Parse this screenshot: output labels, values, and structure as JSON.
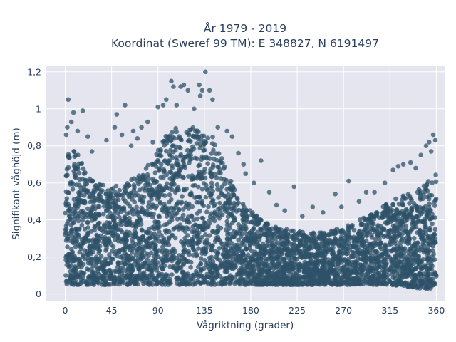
{
  "chart_data": {
    "type": "scatter",
    "title": "År 1979 - 2019",
    "subtitle": "Koordinat (Sweref 99 TM): E 348827, N 6191497",
    "xlabel": "Vågriktning (grader)",
    "ylabel": "Signifikant våghöjd (m)",
    "xlim": [
      -19,
      368
    ],
    "ylim": [
      -0.04,
      1.23
    ],
    "x_ticks": [
      0,
      45,
      90,
      135,
      180,
      225,
      270,
      315,
      360
    ],
    "x_tick_labels": [
      "0",
      "45",
      "90",
      "135",
      "180",
      "225",
      "270",
      "315",
      "360"
    ],
    "y_ticks": [
      0,
      0.2,
      0.4,
      0.6,
      0.8,
      1.0,
      1.2
    ],
    "y_tick_labels": [
      "0",
      "0,2",
      "0,4",
      "0,6",
      "0,8",
      "1",
      "1,2"
    ],
    "grid": true,
    "marker_color": "#2e5168",
    "plot_background": "#e5e5ef",
    "dense_envelope": {
      "x": [
        0,
        10,
        20,
        30,
        45,
        60,
        75,
        90,
        100,
        110,
        120,
        130,
        140,
        150,
        160,
        170,
        180,
        190,
        200,
        215,
        225,
        240,
        255,
        270,
        285,
        300,
        315,
        330,
        345,
        355,
        360
      ],
      "y_low": [
        0.05,
        0.05,
        0.05,
        0.05,
        0.05,
        0.05,
        0.05,
        0.05,
        0.05,
        0.05,
        0.05,
        0.05,
        0.05,
        0.05,
        0.05,
        0.05,
        0.05,
        0.05,
        0.05,
        0.05,
        0.05,
        0.05,
        0.05,
        0.05,
        0.05,
        0.05,
        0.05,
        0.04,
        0.03,
        0.03,
        0.05
      ],
      "y_high": [
        0.82,
        0.78,
        0.66,
        0.62,
        0.58,
        0.6,
        0.66,
        0.78,
        0.88,
        0.9,
        0.9,
        0.9,
        0.88,
        0.78,
        0.62,
        0.52,
        0.45,
        0.4,
        0.37,
        0.35,
        0.34,
        0.33,
        0.34,
        0.36,
        0.4,
        0.44,
        0.5,
        0.54,
        0.58,
        0.62,
        0.66
      ]
    },
    "outlier_points": [
      {
        "x": 3,
        "y": 1.05
      },
      {
        "x": 8,
        "y": 0.98
      },
      {
        "x": 17,
        "y": 0.99
      },
      {
        "x": 2,
        "y": 0.9
      },
      {
        "x": 12,
        "y": 0.88
      },
      {
        "x": 22,
        "y": 0.85
      },
      {
        "x": 58,
        "y": 1.02
      },
      {
        "x": 50,
        "y": 0.97
      },
      {
        "x": 48,
        "y": 0.9
      },
      {
        "x": 66,
        "y": 0.88
      },
      {
        "x": 74,
        "y": 0.9
      },
      {
        "x": 80,
        "y": 0.93
      },
      {
        "x": 70,
        "y": 0.84
      },
      {
        "x": 85,
        "y": 0.82
      },
      {
        "x": 90,
        "y": 1.01
      },
      {
        "x": 95,
        "y": 1.02
      },
      {
        "x": 98,
        "y": 1.05
      },
      {
        "x": 103,
        "y": 1.15
      },
      {
        "x": 105,
        "y": 1.12
      },
      {
        "x": 112,
        "y": 1.12
      },
      {
        "x": 115,
        "y": 1.13
      },
      {
        "x": 119,
        "y": 1.1
      },
      {
        "x": 130,
        "y": 1.13
      },
      {
        "x": 133,
        "y": 1.1
      },
      {
        "x": 136,
        "y": 1.2
      },
      {
        "x": 140,
        "y": 1.1
      },
      {
        "x": 131,
        "y": 1.07
      },
      {
        "x": 143,
        "y": 1.05
      },
      {
        "x": 148,
        "y": 0.9
      },
      {
        "x": 157,
        "y": 0.88
      },
      {
        "x": 162,
        "y": 0.85
      },
      {
        "x": 168,
        "y": 0.76
      },
      {
        "x": 173,
        "y": 0.7
      },
      {
        "x": 175,
        "y": 0.65
      },
      {
        "x": 183,
        "y": 0.6
      },
      {
        "x": 190,
        "y": 0.72
      },
      {
        "x": 198,
        "y": 0.55
      },
      {
        "x": 205,
        "y": 0.48
      },
      {
        "x": 213,
        "y": 0.45
      },
      {
        "x": 222,
        "y": 0.58
      },
      {
        "x": 230,
        "y": 0.42
      },
      {
        "x": 240,
        "y": 0.47
      },
      {
        "x": 250,
        "y": 0.44
      },
      {
        "x": 262,
        "y": 0.54
      },
      {
        "x": 268,
        "y": 0.47
      },
      {
        "x": 275,
        "y": 0.61
      },
      {
        "x": 285,
        "y": 0.5
      },
      {
        "x": 292,
        "y": 0.55
      },
      {
        "x": 300,
        "y": 0.55
      },
      {
        "x": 310,
        "y": 0.6
      },
      {
        "x": 318,
        "y": 0.67
      },
      {
        "x": 323,
        "y": 0.69
      },
      {
        "x": 328,
        "y": 0.7
      },
      {
        "x": 335,
        "y": 0.71
      },
      {
        "x": 340,
        "y": 0.68
      },
      {
        "x": 345,
        "y": 0.75
      },
      {
        "x": 350,
        "y": 0.8
      },
      {
        "x": 353,
        "y": 0.82
      },
      {
        "x": 357,
        "y": 0.86
      },
      {
        "x": 359,
        "y": 0.83
      },
      {
        "x": 355,
        "y": 0.77
      },
      {
        "x": 1,
        "y": 0.86
      },
      {
        "x": 6,
        "y": 0.93
      },
      {
        "x": 26,
        "y": 0.77
      },
      {
        "x": 40,
        "y": 0.83
      },
      {
        "x": 55,
        "y": 0.86
      },
      {
        "x": 64,
        "y": 0.8
      },
      {
        "x": 108,
        "y": 1.02
      },
      {
        "x": 125,
        "y": 1.0
      }
    ]
  }
}
